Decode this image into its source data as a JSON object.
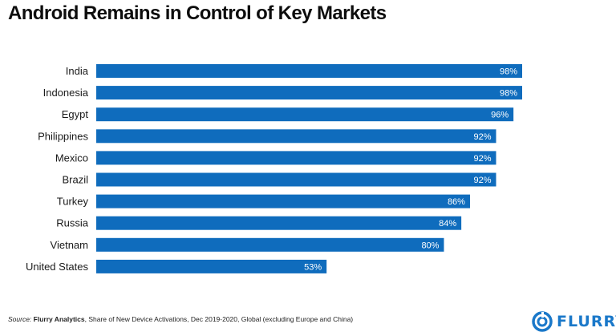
{
  "chart_data": {
    "type": "bar",
    "orientation": "horizontal",
    "title": "Android Remains in Control of Key Markets",
    "categories": [
      "India",
      "Indonesia",
      "Egypt",
      "Philippines",
      "Mexico",
      "Brazil",
      "Turkey",
      "Russia",
      "Vietnam",
      "United States"
    ],
    "values": [
      98,
      98,
      96,
      92,
      92,
      92,
      86,
      84,
      80,
      53
    ],
    "value_labels": [
      "98%",
      "98%",
      "96%",
      "92%",
      "92%",
      "92%",
      "86%",
      "84%",
      "80%",
      "53%"
    ],
    "xlim": [
      0,
      100
    ],
    "grid": false,
    "legend": "none",
    "bar_color": "#0f6cbd"
  },
  "footer": {
    "source_label": "Source:",
    "source_name": "Flurry Analytics",
    "source_rest": ", Share of New Device Activations, Dec 2019-2020, Global (excluding Europe and China)"
  },
  "logo": {
    "text": "FLURRY",
    "color": "#1a78c9",
    "icon": "flurry-swirl-icon"
  }
}
